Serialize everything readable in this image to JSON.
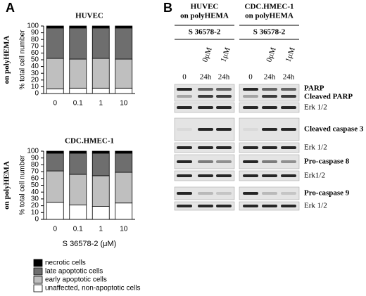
{
  "chart_data": [
    {
      "type": "stacked-bar",
      "title": "HUVEC",
      "side_label": "on polyHEMA",
      "y_label": "% total cell number",
      "categories": [
        "0",
        "0.1",
        "1",
        "10"
      ],
      "ylim": [
        0,
        100
      ],
      "yticks": [
        0,
        10,
        20,
        30,
        40,
        50,
        60,
        70,
        80,
        90,
        100
      ],
      "series": [
        {
          "color": "#ffffff",
          "values": [
            7,
            8,
            8,
            8
          ]
        },
        {
          "color": "#bfbfbf",
          "values": [
            45,
            43,
            44,
            43
          ]
        },
        {
          "color": "#6e6e6e",
          "values": [
            45,
            46,
            45,
            46
          ]
        },
        {
          "color": "#000000",
          "values": [
            3,
            3,
            3,
            3
          ]
        }
      ]
    },
    {
      "type": "stacked-bar",
      "title": "CDC.HMEC-1",
      "side_label": "on polyHEMA",
      "y_label": "% total cell number",
      "x_label": "S 36578-2 (μM)",
      "categories": [
        "0",
        "0.1",
        "1",
        "10"
      ],
      "ylim": [
        0,
        100
      ],
      "yticks": [
        0,
        10,
        20,
        30,
        40,
        50,
        60,
        70,
        80,
        90,
        100
      ],
      "series": [
        {
          "name": "unaffected, non-apoptotic cells",
          "color": "#ffffff",
          "values": [
            25,
            21,
            19,
            24
          ]
        },
        {
          "name": "early apoptotic cells",
          "color": "#bfbfbf",
          "values": [
            46,
            45,
            45,
            45
          ]
        },
        {
          "name": "late apoptotic cells",
          "color": "#6e6e6e",
          "values": [
            26,
            31,
            33,
            28
          ]
        },
        {
          "name": "necrotic cells",
          "color": "#000000",
          "values": [
            3,
            3,
            3,
            3
          ]
        }
      ]
    }
  ],
  "panel_a": "A",
  "panel_b": "B",
  "blot": {
    "groups": [
      {
        "title": "HUVEC",
        "subtitle": "on polyHEMA",
        "treatment": "S 36578-2",
        "doses": [
          "0μM",
          "1μM"
        ],
        "lanes": [
          "0",
          "24h",
          "24h"
        ]
      },
      {
        "title": "CDC.HMEC-1",
        "subtitle": "on polyHEMA",
        "treatment": "S 36578-2",
        "doses": [
          "0μM",
          "1μM"
        ],
        "lanes": [
          "0",
          "24h",
          "24h"
        ]
      }
    ],
    "rows": [
      "PARP",
      "Cleaved PARP",
      "Erk 1/2",
      "Cleaved caspase 3",
      "Erk 1/2",
      "Pro-caspase 8",
      "Erk1/2",
      "Pro-caspase 9",
      "Erk 1/2"
    ]
  }
}
